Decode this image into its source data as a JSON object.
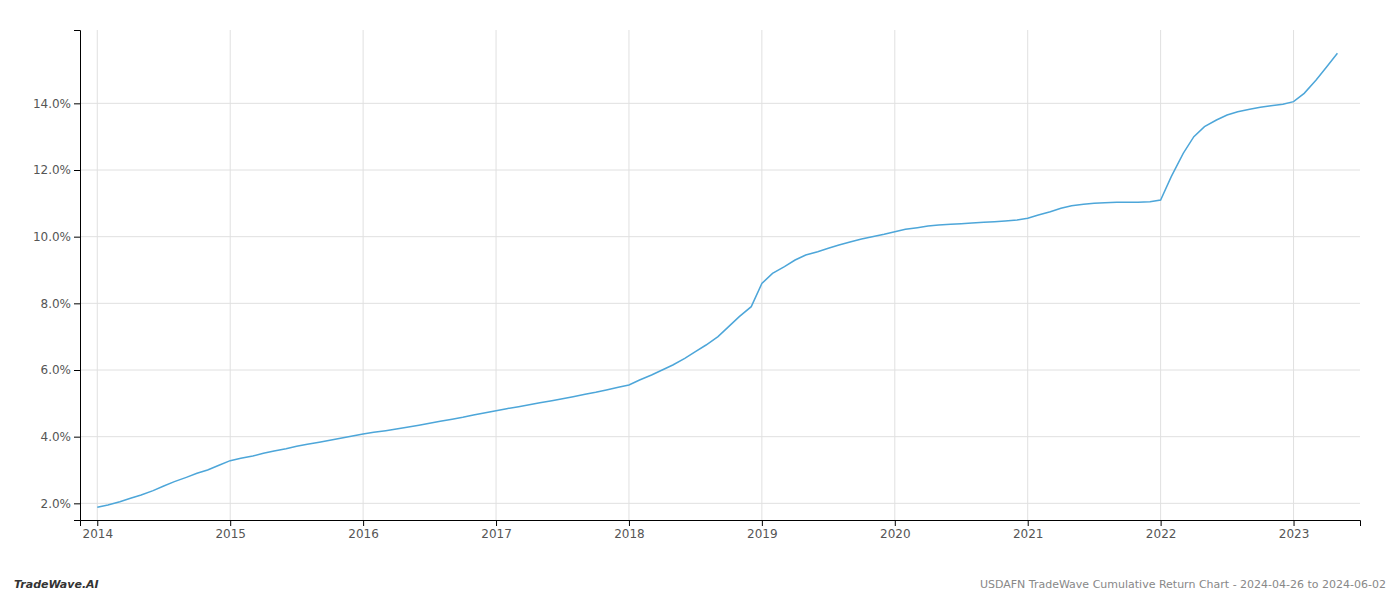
{
  "chart_data": {
    "type": "line",
    "x": [
      2014.0,
      2014.08,
      2014.17,
      2014.25,
      2014.33,
      2014.42,
      2014.5,
      2014.58,
      2014.67,
      2014.75,
      2014.83,
      2014.92,
      2015.0,
      2015.08,
      2015.17,
      2015.25,
      2015.33,
      2015.42,
      2015.5,
      2015.58,
      2015.67,
      2015.75,
      2015.83,
      2015.92,
      2016.0,
      2016.08,
      2016.17,
      2016.25,
      2016.33,
      2016.42,
      2016.5,
      2016.58,
      2016.67,
      2016.75,
      2016.83,
      2016.92,
      2017.0,
      2017.08,
      2017.17,
      2017.25,
      2017.33,
      2017.42,
      2017.5,
      2017.58,
      2017.67,
      2017.75,
      2017.83,
      2017.92,
      2018.0,
      2018.08,
      2018.17,
      2018.25,
      2018.33,
      2018.42,
      2018.5,
      2018.58,
      2018.67,
      2018.75,
      2018.83,
      2018.92,
      2019.0,
      2019.08,
      2019.17,
      2019.25,
      2019.33,
      2019.42,
      2019.5,
      2019.58,
      2019.67,
      2019.75,
      2019.83,
      2019.92,
      2020.0,
      2020.08,
      2020.17,
      2020.25,
      2020.33,
      2020.42,
      2020.5,
      2020.58,
      2020.67,
      2020.75,
      2020.83,
      2020.92,
      2021.0,
      2021.08,
      2021.17,
      2021.25,
      2021.33,
      2021.42,
      2021.5,
      2021.58,
      2021.67,
      2021.75,
      2021.83,
      2021.92,
      2022.0,
      2022.08,
      2022.17,
      2022.25,
      2022.33,
      2022.42,
      2022.5,
      2022.58,
      2022.67,
      2022.75,
      2022.83,
      2022.92,
      2023.0,
      2023.08,
      2023.17,
      2023.25,
      2023.33
    ],
    "values": [
      1.88,
      1.95,
      2.05,
      2.15,
      2.25,
      2.38,
      2.52,
      2.65,
      2.78,
      2.9,
      3.0,
      3.15,
      3.28,
      3.35,
      3.42,
      3.5,
      3.57,
      3.64,
      3.71,
      3.77,
      3.83,
      3.89,
      3.95,
      4.02,
      4.08,
      4.13,
      4.18,
      4.23,
      4.28,
      4.34,
      4.4,
      4.46,
      4.52,
      4.58,
      4.65,
      4.72,
      4.78,
      4.84,
      4.9,
      4.96,
      5.02,
      5.08,
      5.14,
      5.2,
      5.27,
      5.33,
      5.4,
      5.48,
      5.55,
      5.7,
      5.85,
      6.0,
      6.15,
      6.35,
      6.55,
      6.75,
      7.0,
      7.3,
      7.6,
      7.9,
      8.6,
      8.9,
      9.1,
      9.3,
      9.45,
      9.55,
      9.65,
      9.75,
      9.85,
      9.93,
      10.0,
      10.07,
      10.15,
      10.22,
      10.27,
      10.32,
      10.35,
      10.37,
      10.39,
      10.41,
      10.43,
      10.45,
      10.47,
      10.5,
      10.55,
      10.65,
      10.75,
      10.85,
      10.93,
      10.97,
      11.0,
      11.02,
      11.03,
      11.03,
      11.03,
      11.05,
      11.1,
      11.8,
      12.5,
      13.0,
      13.3,
      13.5,
      13.65,
      13.75,
      13.82,
      13.88,
      13.93,
      13.97,
      14.05,
      14.3,
      14.7,
      15.1,
      15.5
    ],
    "color": "#4da6d9",
    "xlim": [
      2013.87,
      2023.5
    ],
    "xticks": [
      2014,
      2015,
      2016,
      2017,
      2018,
      2019,
      2020,
      2021,
      2022,
      2023
    ],
    "ylim": [
      1.5,
      16.2
    ],
    "yticks": [
      {
        "value": 2.0,
        "label": "2.0%"
      },
      {
        "value": 4.0,
        "label": "4.0%"
      },
      {
        "value": 6.0,
        "label": "6.0%"
      },
      {
        "value": 8.0,
        "label": "8.0%"
      },
      {
        "value": 10.0,
        "label": "10.0%"
      },
      {
        "value": 12.0,
        "label": "12.0%"
      },
      {
        "value": 14.0,
        "label": "14.0%"
      }
    ],
    "grid": true,
    "annotations": [
      "TradeWave.AI",
      "USDAFN TradeWave Cumulative Return Chart - 2024-04-26 to 2024-06-02"
    ]
  }
}
